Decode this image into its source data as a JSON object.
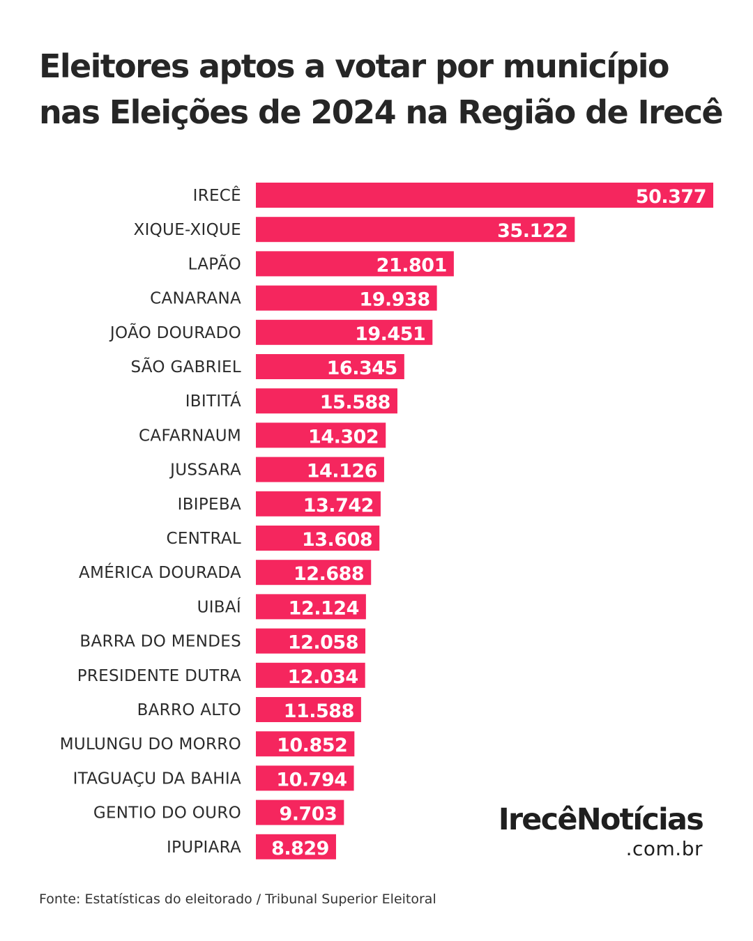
{
  "title": {
    "line1": "Eleitores aptos a votar por município",
    "line2": "nas Eleições de 2024 na Região de Irecê"
  },
  "chart_data": {
    "type": "bar",
    "orientation": "horizontal",
    "title": "Eleitores aptos a votar por município nas Eleições de 2024 na Região de Irecê",
    "categories": [
      "IRECÊ",
      "XIQUE-XIQUE",
      "LAPÃO",
      "CANARANA",
      "JOÃO DOURADO",
      "SÃO GABRIEL",
      "IBITITÁ",
      "CAFARNAUM",
      "JUSSARA",
      "IBIPEBA",
      "CENTRAL",
      "AMÉRICA DOURADA",
      "UIBAÍ",
      "BARRA DO MENDES",
      "PRESIDENTE DUTRA",
      "BARRO ALTO",
      "MULUNGU DO MORRO",
      "ITAGUAÇU DA BAHIA",
      "GENTIO DO OURO",
      "IPUPIARA"
    ],
    "values": [
      50377,
      35122,
      21801,
      19938,
      19451,
      16345,
      15588,
      14302,
      14126,
      13742,
      13608,
      12688,
      12124,
      12058,
      12034,
      11588,
      10852,
      10794,
      9703,
      8829
    ],
    "value_labels": [
      "50.377",
      "35.122",
      "21.801",
      "19.938",
      "19.451",
      "16.345",
      "15.588",
      "14.302",
      "14.126",
      "13.742",
      "13.608",
      "12.688",
      "12.124",
      "12.058",
      "12.034",
      "11.588",
      "10.852",
      "10.794",
      "9.703",
      "8.829"
    ],
    "xlim": [
      0,
      50377
    ],
    "grid": false,
    "legend": "none",
    "bar_color": "#f5265e",
    "label_color": "#ffffff"
  },
  "brand": {
    "name": "IrecêNotícias",
    "domain": ".com.br"
  },
  "source": "Fonte: Estatísticas do eleitorado / Tribunal Superior Eleitoral"
}
